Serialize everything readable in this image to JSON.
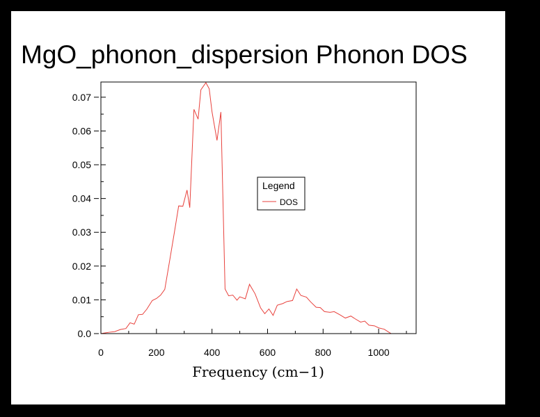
{
  "chart_data": {
    "type": "line",
    "title": "MgO_phonon_dispersion Phonon DOS",
    "xlabel": "Frequency (cm−1)",
    "ylabel": "",
    "xlim": [
      0,
      1135
    ],
    "ylim": [
      0,
      0.0745
    ],
    "x_ticks": [
      0,
      200,
      400,
      600,
      800,
      1000
    ],
    "x_tick_labels": [
      "0",
      "200",
      "400",
      "600",
      "800",
      "1000"
    ],
    "y_ticks": [
      0,
      0.01,
      0.02,
      0.03,
      0.04,
      0.05,
      0.06,
      0.07
    ],
    "y_tick_labels": [
      "0.0",
      "0.01",
      "0.02",
      "0.03",
      "0.04",
      "0.05",
      "0.06",
      "0.07"
    ],
    "grid": false,
    "legend": {
      "title": "Legend",
      "position": "center-right",
      "entries": [
        "DOS"
      ]
    },
    "series": [
      {
        "name": "DOS",
        "color": "#e8413c",
        "points": [
          [
            0,
            0.0
          ],
          [
            15,
            0.0002
          ],
          [
            30,
            0.0004
          ],
          [
            50,
            0.0006
          ],
          [
            70,
            0.0012
          ],
          [
            90,
            0.0015
          ],
          [
            105,
            0.0032
          ],
          [
            120,
            0.0028
          ],
          [
            135,
            0.0056
          ],
          [
            150,
            0.0057
          ],
          [
            165,
            0.0072
          ],
          [
            185,
            0.0098
          ],
          [
            200,
            0.0104
          ],
          [
            215,
            0.0114
          ],
          [
            230,
            0.0131
          ],
          [
            250,
            0.0228
          ],
          [
            265,
            0.0302
          ],
          [
            280,
            0.0378
          ],
          [
            295,
            0.0377
          ],
          [
            310,
            0.0425
          ],
          [
            320,
            0.0373
          ],
          [
            335,
            0.0664
          ],
          [
            350,
            0.0635
          ],
          [
            360,
            0.0722
          ],
          [
            378,
            0.0743
          ],
          [
            390,
            0.0725
          ],
          [
            400,
            0.0657
          ],
          [
            418,
            0.0572
          ],
          [
            432,
            0.0656
          ],
          [
            447,
            0.0132
          ],
          [
            460,
            0.0112
          ],
          [
            475,
            0.0114
          ],
          [
            490,
            0.0099
          ],
          [
            500,
            0.0109
          ],
          [
            520,
            0.0103
          ],
          [
            535,
            0.0146
          ],
          [
            555,
            0.0118
          ],
          [
            575,
            0.0076
          ],
          [
            590,
            0.0059
          ],
          [
            605,
            0.0073
          ],
          [
            620,
            0.0054
          ],
          [
            635,
            0.0084
          ],
          [
            655,
            0.0089
          ],
          [
            670,
            0.0095
          ],
          [
            690,
            0.0098
          ],
          [
            705,
            0.0132
          ],
          [
            720,
            0.0113
          ],
          [
            740,
            0.0108
          ],
          [
            755,
            0.0094
          ],
          [
            775,
            0.0078
          ],
          [
            790,
            0.0077
          ],
          [
            805,
            0.0065
          ],
          [
            825,
            0.0063
          ],
          [
            840,
            0.0065
          ],
          [
            860,
            0.0056
          ],
          [
            880,
            0.0046
          ],
          [
            900,
            0.0052
          ],
          [
            915,
            0.0044
          ],
          [
            935,
            0.0034
          ],
          [
            950,
            0.0037
          ],
          [
            965,
            0.0025
          ],
          [
            985,
            0.0023
          ],
          [
            1000,
            0.0017
          ],
          [
            1020,
            0.0013
          ],
          [
            1035,
            0.0005
          ],
          [
            1045,
            0.0
          ]
        ]
      }
    ]
  }
}
